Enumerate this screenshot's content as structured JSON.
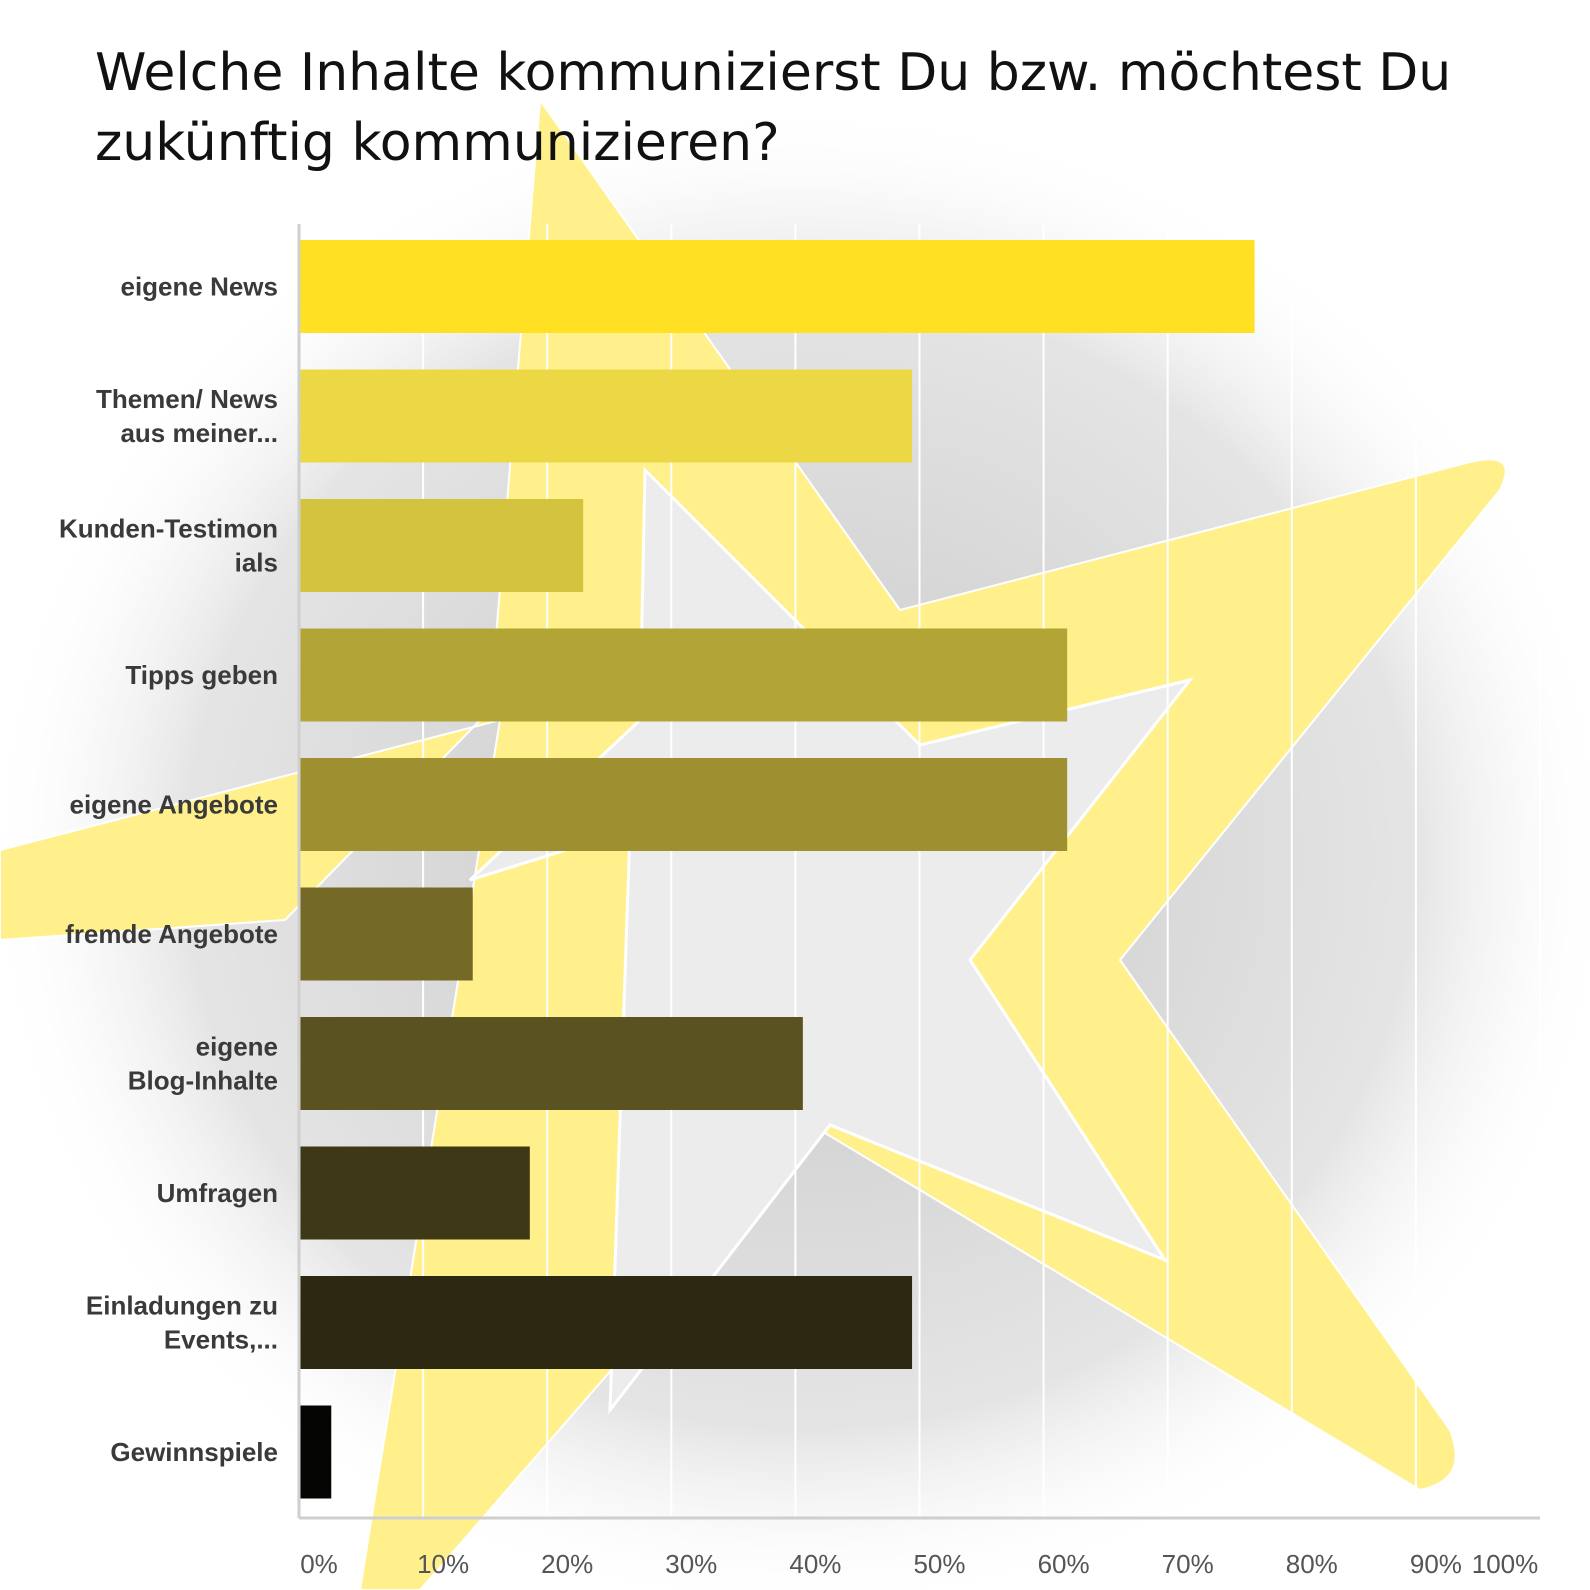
{
  "title": "Welche Inhalte kommunizierst Du bzw. möchtest Du zukünftig kommunizieren?",
  "colors": {
    "star": "#fff08c",
    "star_outline": "#ffffff",
    "background": "#ffffff",
    "gridline": "#ffffff",
    "axis": "#cfcfcf"
  },
  "chart_data": {
    "type": "bar",
    "orientation": "horizontal",
    "title": "Welche Inhalte kommunizierst Du bzw. möchtest Du zukünftig kommunizieren?",
    "xlabel": "",
    "ylabel": "",
    "xlim": [
      0,
      100
    ],
    "grid": true,
    "legend": "none",
    "ticks": [
      "0%",
      "10%",
      "20%",
      "30%",
      "40%",
      "50%",
      "60%",
      "70%",
      "80%",
      "90%",
      "100%"
    ],
    "categories": [
      [
        "eigene News"
      ],
      [
        "Themen/ News",
        "aus meiner..."
      ],
      [
        "Kunden-Testimon",
        "ials"
      ],
      [
        "Tipps geben"
      ],
      [
        "eigene Angebote"
      ],
      [
        "fremde Angebote"
      ],
      [
        "eigene",
        "Blog-Inhalte"
      ],
      [
        "Umfragen"
      ],
      [
        "Einladungen zu",
        "Events,..."
      ],
      [
        "Gewinnspiele"
      ]
    ],
    "values": [
      77,
      49.4,
      22.9,
      61.9,
      61.9,
      14,
      40.6,
      18.6,
      49.4,
      2.6
    ],
    "bar_colors": [
      "#ffe022",
      "#ecd744",
      "#d4c33e",
      "#b3a535",
      "#9e8f31",
      "#746927",
      "#5b5221",
      "#3e3817",
      "#2d2812",
      "#050503"
    ]
  }
}
